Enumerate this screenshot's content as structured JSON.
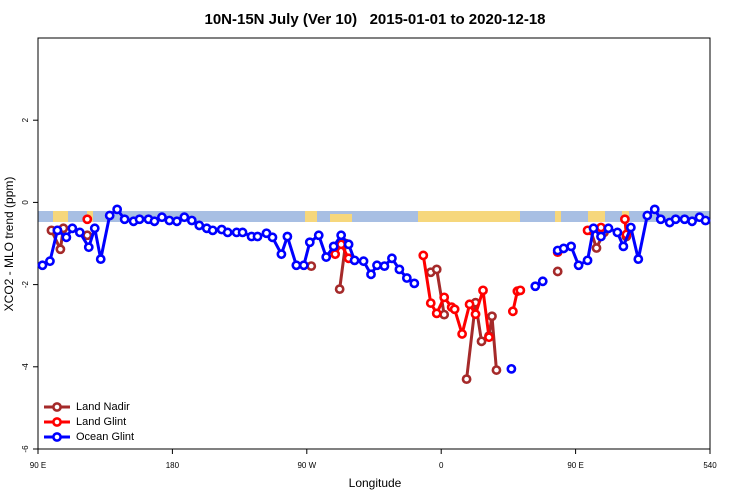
{
  "chart_data": {
    "type": "line",
    "title": "10N-15N July (Ver 10)   2015-01-01 to 2020-12-18",
    "xlabel": "Longitude",
    "ylabel": "XCO2 - MLO trend (ppm)",
    "xlim": [
      90,
      540
    ],
    "xticks": [
      {
        "value": 90,
        "label": "90 E"
      },
      180,
      {
        "value": 270,
        "label": "90 W"
      },
      {
        "value": 360,
        "label": "0"
      },
      {
        "value": 450,
        "label": "90 E"
      },
      540
    ],
    "ylim": [
      -6,
      4
    ],
    "yticks": [
      -6,
      -4,
      -2,
      0,
      2
    ],
    "legend": "lower left",
    "series": [
      {
        "name": "Land Nadir",
        "color": "#a52a2a",
        "x": [
          99,
          105,
          107,
          null,
          123,
          null,
          273,
          null,
          292,
          296,
          null,
          353,
          357,
          362,
          null,
          377,
          383,
          387,
          392,
          394,
          397,
          null,
          438,
          null,
          460,
          464,
          469,
          null,
          484
        ],
        "values": [
          -0.68,
          -1.14,
          -0.63,
          null,
          -0.8,
          null,
          -1.55,
          null,
          -2.11,
          -1.0,
          null,
          -1.7,
          -1.63,
          -2.73,
          null,
          -4.3,
          -2.44,
          -3.38,
          -3.25,
          -2.77,
          -4.08,
          null,
          -1.68,
          null,
          -0.68,
          -1.11,
          -0.73,
          null,
          -0.83
        ]
      },
      {
        "name": "Land Glint",
        "color": "#ff0000",
        "x": [
          103,
          null,
          123,
          null,
          289,
          293,
          298,
          null,
          348,
          353,
          357,
          362,
          367,
          369,
          374,
          379,
          383,
          388,
          392,
          null,
          408,
          411,
          413,
          null,
          438,
          null,
          458,
          467,
          null,
          483,
          484
        ],
        "values": [
          -0.68,
          null,
          -0.41,
          null,
          -1.26,
          -1.02,
          -1.36,
          null,
          -1.29,
          -2.45,
          -2.7,
          -2.31,
          -2.55,
          -2.6,
          -3.2,
          -2.48,
          -2.72,
          -2.14,
          -3.28,
          null,
          -2.65,
          -2.16,
          -2.14,
          null,
          -1.21,
          null,
          -0.68,
          -0.61,
          null,
          -0.41,
          -0.78
        ]
      },
      {
        "name": "Ocean Glint",
        "color": "#0000ff",
        "x": [
          93,
          98,
          103,
          109,
          113,
          118,
          124,
          128,
          132,
          138,
          143,
          148,
          154,
          158,
          164,
          168,
          173,
          178,
          183,
          188,
          193,
          198,
          203,
          207,
          213,
          217,
          223,
          227,
          233,
          237,
          243,
          247,
          253,
          257,
          263,
          268,
          272,
          278,
          283,
          288,
          293,
          298,
          302,
          308,
          313,
          317,
          322,
          327,
          332,
          337,
          342,
          null,
          407,
          null,
          423,
          428,
          null,
          438,
          442,
          447,
          452,
          458,
          462,
          467,
          472,
          478,
          482,
          487,
          492,
          498,
          503,
          507,
          513,
          517,
          523,
          528,
          533,
          537
        ],
        "values": [
          -1.53,
          -1.43,
          -0.68,
          -0.85,
          -0.63,
          -0.73,
          -1.09,
          -0.63,
          -1.38,
          -0.32,
          -0.17,
          -0.41,
          -0.46,
          -0.41,
          -0.41,
          -0.46,
          -0.36,
          -0.44,
          -0.46,
          -0.36,
          -0.44,
          -0.56,
          -0.63,
          -0.68,
          -0.66,
          -0.73,
          -0.73,
          -0.73,
          -0.83,
          -0.83,
          -0.75,
          -0.85,
          -1.26,
          -0.83,
          -1.53,
          -1.53,
          -0.97,
          -0.8,
          -1.33,
          -1.07,
          -0.8,
          -1.02,
          -1.41,
          -1.43,
          -1.75,
          -1.53,
          -1.55,
          -1.36,
          -1.63,
          -1.84,
          -1.97,
          null,
          -4.05,
          null,
          -2.04,
          -1.92,
          null,
          -1.17,
          -1.12,
          -1.07,
          -1.53,
          -1.41,
          -0.63,
          -0.83,
          -0.63,
          -0.73,
          -1.07,
          -0.61,
          -1.38,
          -0.32,
          -0.17,
          -0.41,
          -0.49,
          -0.41,
          -0.41,
          -0.46,
          -0.36,
          -0.44
        ]
      }
    ]
  }
}
